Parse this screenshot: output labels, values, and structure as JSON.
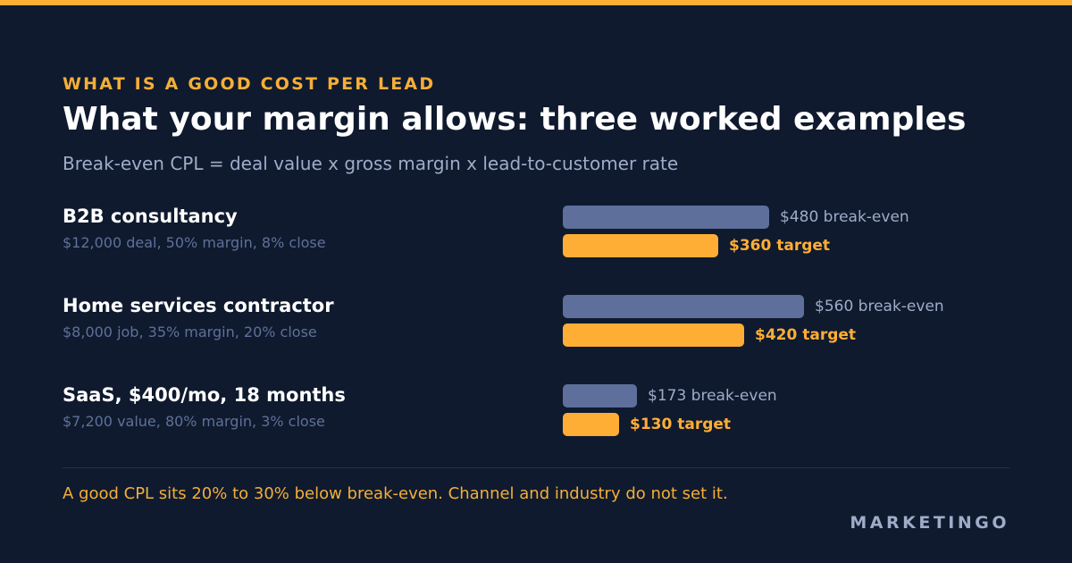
{
  "eyebrow": "WHAT IS A GOOD COST PER LEAD",
  "title": "What your margin allows: three worked examples",
  "subtitle": "Break-even CPL = deal value x gross margin x lead-to-customer rate",
  "footer_note": "A good CPL sits 20% to 30% below break-even. Channel and industry do not set it.",
  "brand": "MARKETINGO",
  "colors": {
    "background": "#0f1a2e",
    "accent": "#ffae35",
    "break_even_bar": "#5d6f9a",
    "muted_text": "#9eacc8"
  },
  "chart_data": {
    "type": "bar",
    "orientation": "horizontal",
    "title": "What your margin allows: three worked examples",
    "subtitle": "Break-even CPL = deal value x gross margin x lead-to-customer rate",
    "categories": [
      "B2B consultancy",
      "Home services contractor",
      "SaaS, $400/mo, 18 months"
    ],
    "category_details": [
      "$12,000 deal, 50% margin, 8% close",
      "$8,000 job, 35% margin, 20% close",
      "$7,200 value, 80% margin, 3% close"
    ],
    "series": [
      {
        "key": "break_even",
        "values": [
          480,
          560,
          173
        ],
        "labels": [
          "$480 break-even",
          "$560 break-even",
          "$173 break-even"
        ],
        "color": "#5d6f9a"
      },
      {
        "key": "target",
        "values": [
          360,
          420,
          130
        ],
        "labels": [
          "$360 target",
          "$420 target",
          "$130 target"
        ],
        "color": "#ffae35"
      }
    ],
    "grid": false,
    "axes_visible": false
  }
}
